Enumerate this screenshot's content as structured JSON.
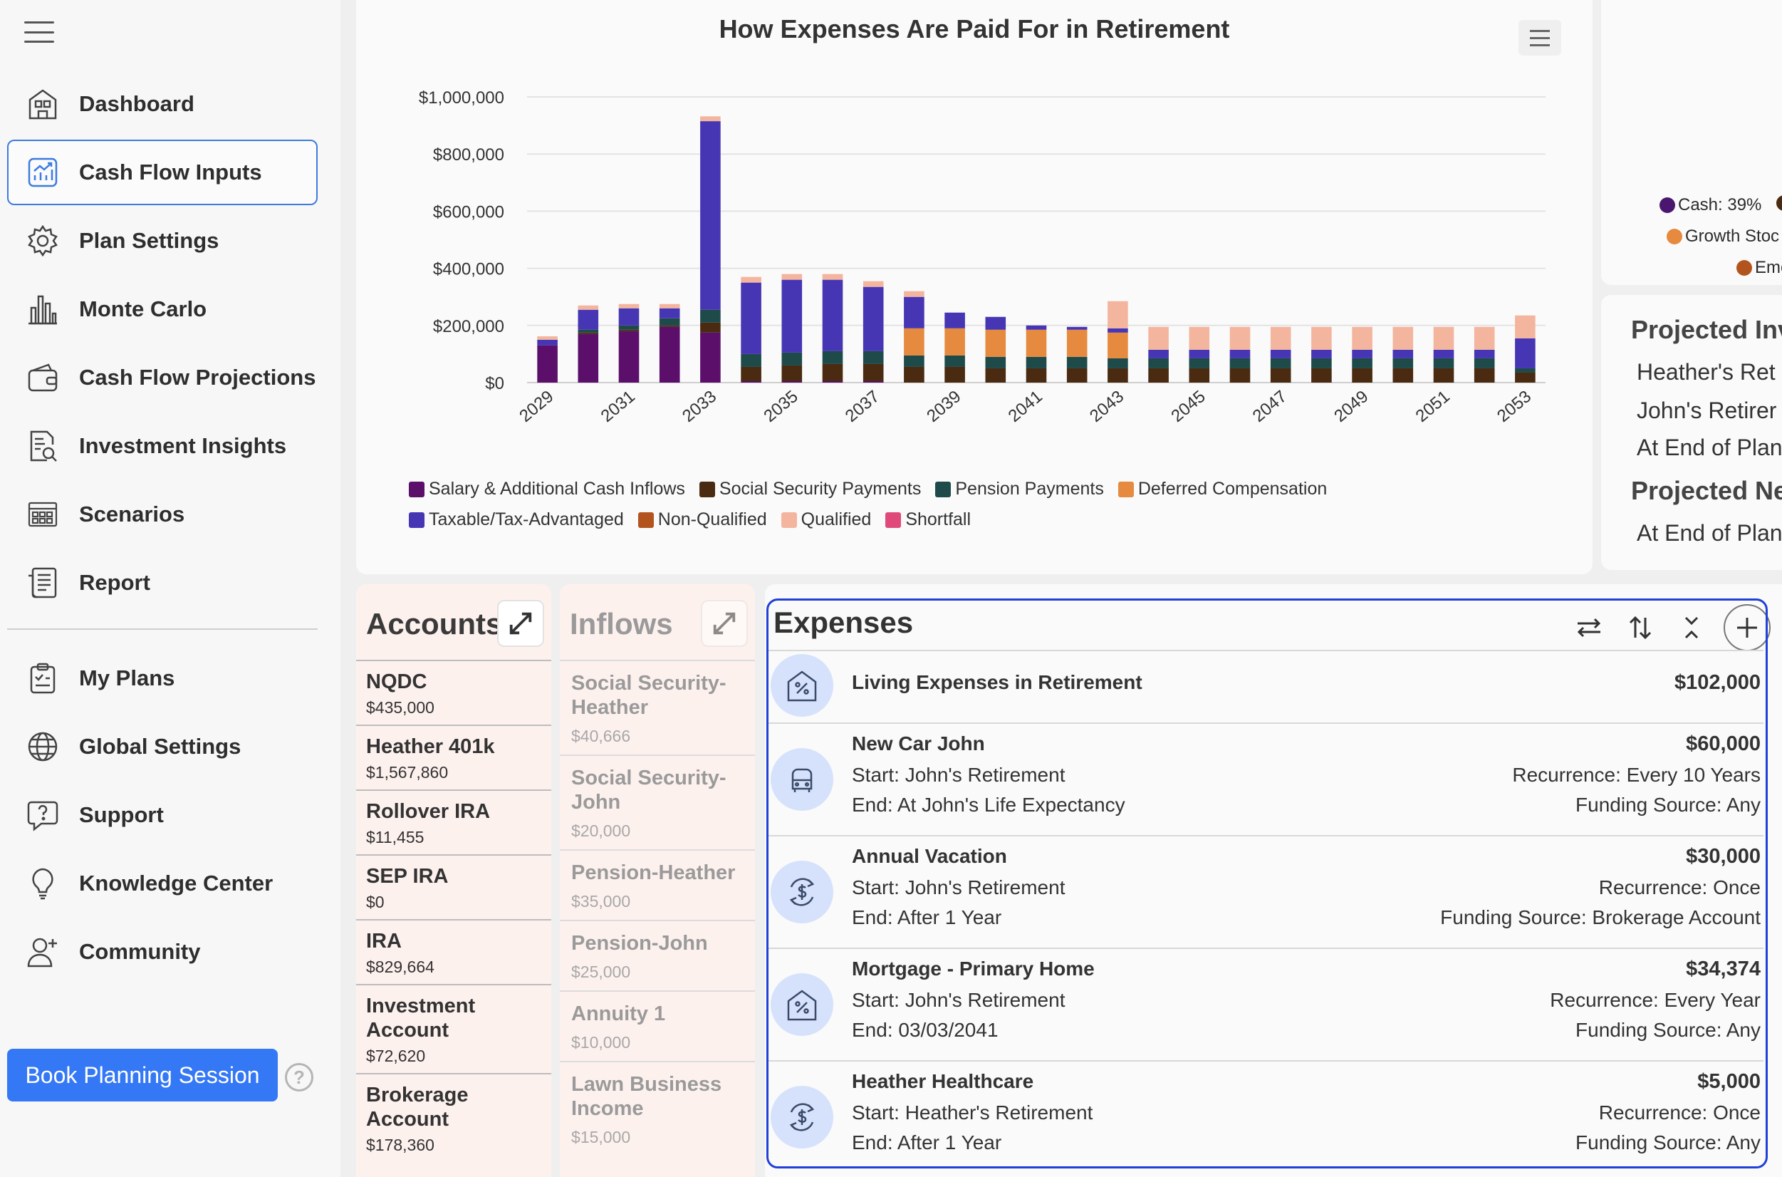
{
  "sidebar": {
    "items": [
      {
        "label": "Dashboard",
        "icon": "dashboard-icon"
      },
      {
        "label": "Cash Flow Inputs",
        "icon": "cash-flow-inputs-icon",
        "active": true
      },
      {
        "label": "Plan Settings",
        "icon": "gear-icon"
      },
      {
        "label": "Monte Carlo",
        "icon": "bar-chart-icon"
      },
      {
        "label": "Cash Flow Projections",
        "icon": "wallet-icon"
      },
      {
        "label": "Investment Insights",
        "icon": "document-search-icon"
      },
      {
        "label": "Scenarios",
        "icon": "scenarios-icon"
      },
      {
        "label": "Report",
        "icon": "report-icon"
      }
    ],
    "secondary": [
      {
        "label": "My Plans",
        "icon": "clipboard-icon"
      },
      {
        "label": "Global Settings",
        "icon": "globe-icon"
      },
      {
        "label": "Support",
        "icon": "help-chat-icon"
      },
      {
        "label": "Knowledge Center",
        "icon": "lightbulb-icon"
      },
      {
        "label": "Community",
        "icon": "add-user-icon"
      }
    ],
    "book_button": "Book Planning Session",
    "help": "?"
  },
  "chart_data": {
    "type": "bar",
    "stacked": true,
    "title": "How Expenses Are Paid For in Retirement",
    "ylim": [
      0,
      1000000
    ],
    "yticks": [
      "$1,000,000",
      "$800,000",
      "$600,000",
      "$400,000",
      "$200,000",
      "$0"
    ],
    "categories": [
      2029,
      2030,
      2031,
      2032,
      2033,
      2034,
      2035,
      2036,
      2037,
      2038,
      2039,
      2040,
      2041,
      2042,
      2043,
      2044,
      2045,
      2046,
      2047,
      2048,
      2049,
      2050,
      2051,
      2052,
      2053
    ],
    "xticks": [
      "2029",
      "2031",
      "2033",
      "2035",
      "2037",
      "2039",
      "2041",
      "2043",
      "2045",
      "2047",
      "2049",
      "2051",
      "2053"
    ],
    "series": [
      {
        "name": "Salary & Additional Cash Inflows",
        "color": "#5b0f6b",
        "values": [
          130000,
          170000,
          180000,
          195000,
          175000,
          5000,
          5000,
          5000,
          5000,
          0,
          0,
          0,
          0,
          0,
          0,
          0,
          0,
          0,
          0,
          0,
          0,
          0,
          0,
          0,
          0
        ]
      },
      {
        "name": "Social Security Payments",
        "color": "#4a2a10",
        "values": [
          0,
          5000,
          5000,
          5000,
          35000,
          50000,
          55000,
          60000,
          60000,
          55000,
          55000,
          50000,
          50000,
          50000,
          50000,
          50000,
          50000,
          50000,
          50000,
          50000,
          50000,
          50000,
          50000,
          50000,
          35000
        ]
      },
      {
        "name": "Pension Payments",
        "color": "#1e4a4a",
        "values": [
          0,
          10000,
          15000,
          25000,
          45000,
          45000,
          45000,
          45000,
          45000,
          40000,
          40000,
          40000,
          40000,
          40000,
          35000,
          35000,
          35000,
          35000,
          35000,
          35000,
          35000,
          35000,
          35000,
          35000,
          15000
        ]
      },
      {
        "name": "Deferred Compensation",
        "color": "#e58a3e",
        "values": [
          0,
          0,
          0,
          0,
          0,
          0,
          0,
          0,
          0,
          95000,
          95000,
          95000,
          95000,
          95000,
          90000,
          0,
          0,
          0,
          0,
          0,
          0,
          0,
          0,
          0,
          0
        ]
      },
      {
        "name": "Taxable/Tax-Advantaged",
        "color": "#4636b4",
        "values": [
          20000,
          70000,
          60000,
          35000,
          660000,
          250000,
          255000,
          250000,
          225000,
          110000,
          55000,
          45000,
          15000,
          10000,
          15000,
          30000,
          30000,
          30000,
          30000,
          30000,
          30000,
          30000,
          30000,
          30000,
          105000
        ]
      },
      {
        "name": "Non-Qualified",
        "color": "#b3541e",
        "values": [
          0,
          0,
          0,
          0,
          0,
          0,
          0,
          0,
          0,
          0,
          0,
          0,
          0,
          0,
          0,
          0,
          0,
          0,
          0,
          0,
          0,
          0,
          0,
          0,
          0
        ]
      },
      {
        "name": "Qualified",
        "color": "#f4b59f",
        "values": [
          12000,
          15000,
          15000,
          15000,
          17000,
          20000,
          20000,
          20000,
          20000,
          20000,
          0,
          0,
          0,
          0,
          95000,
          80000,
          80000,
          80000,
          80000,
          80000,
          80000,
          80000,
          80000,
          80000,
          80000
        ]
      },
      {
        "name": "Shortfall",
        "color": "#e04a7a",
        "values": [
          0,
          0,
          0,
          0,
          0,
          0,
          0,
          0,
          0,
          0,
          0,
          0,
          0,
          0,
          0,
          0,
          0,
          0,
          0,
          0,
          0,
          0,
          0,
          0,
          0
        ]
      }
    ]
  },
  "legend_rows": [
    [
      "Salary & Additional Cash Inflows",
      "Social Security Payments",
      "Pension Payments",
      "Deferred Compensation"
    ],
    [
      "Taxable/Tax-Advantaged",
      "Non-Qualified",
      "Qualified",
      "Shortfall"
    ]
  ],
  "right_top": {
    "legend": [
      {
        "label": "Cash: 39%",
        "color": "#4a1670"
      },
      {
        "label": "Growth Stoc",
        "color": "#e58a3e"
      },
      {
        "label": "Eme",
        "color": "#b3541e"
      }
    ],
    "extra_dot_color": "#4a2a10"
  },
  "right_mid": {
    "heading1": "Projected Inv",
    "lines1": [
      "Heather's Ret",
      "John's Retirer",
      "At End of Plan"
    ],
    "heading2": "Projected Ne",
    "lines2": [
      "At End of Plan"
    ]
  },
  "accounts": {
    "title": "Accounts",
    "items": [
      {
        "name": "NQDC",
        "value": "$435,000"
      },
      {
        "name": "Heather 401k",
        "value": "$1,567,860"
      },
      {
        "name": "Rollover IRA",
        "value": "$11,455"
      },
      {
        "name": "SEP IRA",
        "value": "$0"
      },
      {
        "name": "IRA",
        "value": "$829,664"
      },
      {
        "name": "Investment Account",
        "value": "$72,620"
      },
      {
        "name": "Brokerage Account",
        "value": "$178,360"
      }
    ]
  },
  "inflows": {
    "title": "Inflows",
    "items": [
      {
        "name": "Social Security-Heather",
        "value": "$40,666"
      },
      {
        "name": "Social Security-John",
        "value": "$20,000"
      },
      {
        "name": "Pension-Heather",
        "value": "$35,000"
      },
      {
        "name": "Pension-John",
        "value": "$25,000"
      },
      {
        "name": "Annuity 1",
        "value": "$10,000"
      },
      {
        "name": "Lawn Business Income",
        "value": "$15,000"
      }
    ]
  },
  "expenses": {
    "title": "Expenses",
    "items": [
      {
        "name": "Living Expenses in Retirement",
        "amount": "$102,000",
        "icon": "house-percent-icon"
      },
      {
        "name": "New Car John",
        "amount": "$60,000",
        "start": "Start: John's Retirement",
        "end": "End: At John's Life Expectancy",
        "recurrence": "Recurrence: Every 10 Years",
        "funding": "Funding Source: Any",
        "icon": "car-icon"
      },
      {
        "name": "Annual Vacation",
        "amount": "$30,000",
        "start": "Start: John's Retirement",
        "end": "End: After 1 Year",
        "recurrence": "Recurrence: Once",
        "funding": "Funding Source: Brokerage Account",
        "icon": "dollar-cycle-icon"
      },
      {
        "name": "Mortgage - Primary Home",
        "amount": "$34,374",
        "start": "Start: John's Retirement",
        "end": "End: 03/03/2041",
        "recurrence": "Recurrence: Every Year",
        "funding": "Funding Source: Any",
        "icon": "house-percent-icon"
      },
      {
        "name": "Heather Healthcare",
        "amount": "$5,000",
        "start": "Start: Heather's Retirement",
        "end": "End: After 1 Year",
        "recurrence": "Recurrence: Once",
        "funding": "Funding Source: Any",
        "icon": "dollar-cycle-icon"
      }
    ]
  }
}
